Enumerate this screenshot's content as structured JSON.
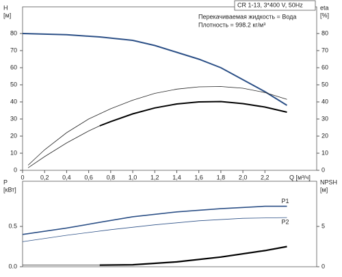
{
  "chart_data": [
    {
      "type": "line",
      "title": "CR 1-13, 3*400 V, 50Hz",
      "annotations": [
        "Перекачиваемая жидкость = Вода",
        "Плотность = 998.2 кг/м³"
      ],
      "ylabel": [
        "H",
        "[м]"
      ],
      "y2label": [
        "eta",
        "[%]"
      ],
      "xlabel": "Q [м³/ч]",
      "xlim": [
        0,
        2.67
      ],
      "ylim": [
        0,
        95.6
      ],
      "y2lim": [
        0,
        95.6
      ],
      "xticks": [
        0,
        {
          "value": 0.2,
          "label": "0,2"
        },
        {
          "value": 0.4,
          "label": "0,4"
        },
        {
          "value": 0.6,
          "label": "0,6"
        },
        {
          "value": 0.8,
          "label": "0,8"
        },
        {
          "value": 1.0,
          "label": "1,0"
        },
        {
          "value": 1.2,
          "label": "1,2"
        },
        {
          "value": 1.4,
          "label": "1,4"
        },
        {
          "value": 1.6,
          "label": "1,6"
        },
        {
          "value": 1.8,
          "label": "1,8"
        },
        {
          "value": 2.0,
          "label": "2,0"
        },
        {
          "value": 2.2,
          "label": "2,2"
        }
      ],
      "yticks": [
        0,
        10,
        20,
        30,
        40,
        50,
        60,
        70,
        80
      ],
      "y2ticks": [
        0,
        10,
        20,
        30,
        40,
        50,
        60,
        70,
        80
      ],
      "series": [
        {
          "color": "#2b4f86",
          "width": 2,
          "x": [
            0,
            0.4,
            0.7,
            1.0,
            1.2,
            1.4,
            1.6,
            1.8,
            2.0,
            2.2,
            2.4
          ],
          "values": [
            80,
            79.3,
            78,
            76,
            73,
            69,
            65,
            60,
            53,
            46,
            38
          ]
        },
        {
          "color": "#222222",
          "width": 0.8,
          "axis": "y2",
          "x": [
            0.05,
            0.2,
            0.4,
            0.6,
            0.8,
            1.0,
            1.2,
            1.4,
            1.6,
            1.8,
            2.0,
            2.2,
            2.4
          ],
          "values": [
            3,
            12,
            22,
            30,
            36,
            41,
            45,
            47.5,
            48.8,
            49,
            48,
            45.5,
            41.5
          ]
        },
        {
          "color": "#222222",
          "width": 0.8,
          "axis": "y2",
          "x": [
            0.05,
            0.2,
            0.4,
            0.6,
            0.7
          ],
          "values": [
            1.5,
            8,
            16,
            23,
            26
          ]
        },
        {
          "color": "#000000",
          "width": 2,
          "axis": "y2",
          "x": [
            0.7,
            0.8,
            1.0,
            1.2,
            1.4,
            1.6,
            1.8,
            2.0,
            2.2,
            2.4
          ],
          "values": [
            26,
            28.5,
            33,
            36.5,
            38.8,
            40,
            40.2,
            39,
            37,
            34
          ]
        }
      ]
    },
    {
      "type": "line",
      "ylabel": [
        "P",
        "[кВт]"
      ],
      "y2label": [
        "NPSH",
        "[м]"
      ],
      "xlim": [
        0,
        2.67
      ],
      "ylim": [
        0,
        1.06
      ],
      "y2lim": [
        0,
        10.6
      ],
      "yticks": [
        {
          "value": 0,
          "label": "0.0"
        },
        0.5
      ],
      "y2ticks": [
        0,
        5
      ],
      "series": [
        {
          "name": "P1",
          "color": "#2b4f86",
          "width": 1.6,
          "x": [
            0,
            0.4,
            0.7,
            1.0,
            1.4,
            1.8,
            2.2,
            2.4
          ],
          "values": [
            0.4,
            0.48,
            0.55,
            0.62,
            0.68,
            0.72,
            0.75,
            0.75
          ]
        },
        {
          "name": "P2",
          "color": "#2b4f86",
          "width": 0.8,
          "x": [
            0,
            0.4,
            0.8,
            1.2,
            1.6,
            2.0,
            2.4
          ],
          "values": [
            0.31,
            0.39,
            0.46,
            0.52,
            0.57,
            0.6,
            0.61
          ]
        },
        {
          "color": "#222222",
          "width": 0.8,
          "axis": "y2",
          "x": [
            0,
            0.7
          ],
          "values": [
            0.2,
            0.2
          ]
        },
        {
          "color": "#000000",
          "width": 2.2,
          "axis": "y2",
          "x": [
            0.7,
            1.0,
            1.4,
            1.8,
            2.2,
            2.4
          ],
          "values": [
            0.2,
            0.25,
            0.6,
            1.2,
            2.0,
            2.5
          ]
        }
      ]
    }
  ]
}
